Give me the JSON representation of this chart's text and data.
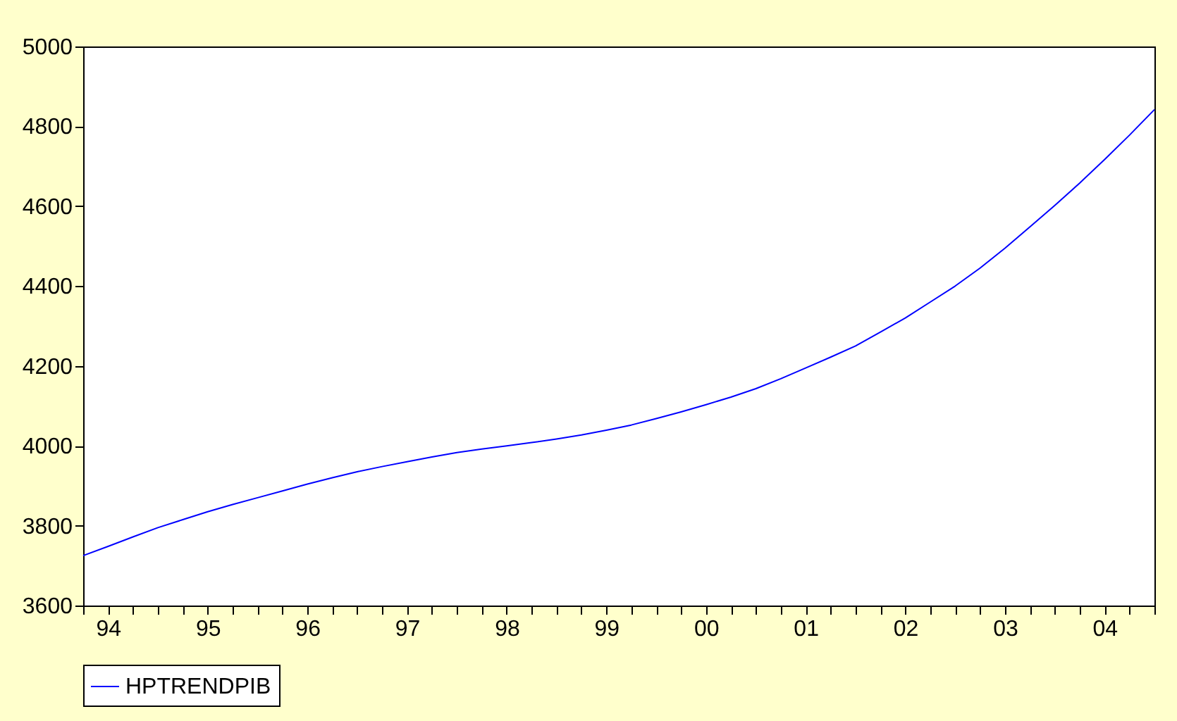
{
  "chart_data": {
    "type": "line",
    "categories": [
      null,
      "94",
      null,
      null,
      null,
      "95",
      null,
      null,
      null,
      "96",
      null,
      null,
      null,
      "97",
      null,
      null,
      null,
      "98",
      null,
      null,
      null,
      "99",
      null,
      null,
      null,
      "00",
      null,
      null,
      null,
      "01",
      null,
      null,
      null,
      "02",
      null,
      null,
      null,
      "03",
      null,
      null,
      null,
      "04",
      null,
      null
    ],
    "series": [
      {
        "name": "HPTRENDPIB",
        "color": "#0000ff",
        "values": [
          3725,
          3748,
          3772,
          3795,
          3815,
          3835,
          3853,
          3870,
          3887,
          3904,
          3920,
          3935,
          3948,
          3960,
          3972,
          3983,
          3992,
          4000,
          4008,
          4017,
          4027,
          4039,
          4052,
          4068,
          4085,
          4103,
          4122,
          4143,
          4168,
          4195,
          4222,
          4250,
          4285,
          4320,
          4360,
          4400,
          4445,
          4495,
          4548,
          4602,
          4658,
          4717,
          4778,
          4842
        ]
      }
    ],
    "ylim": [
      3600,
      5000
    ],
    "yticks": [
      3600,
      3800,
      4000,
      4200,
      4400,
      4600,
      4800,
      5000
    ],
    "grid": false,
    "legend": "bottom",
    "line_style": "solid",
    "marker": "none"
  }
}
